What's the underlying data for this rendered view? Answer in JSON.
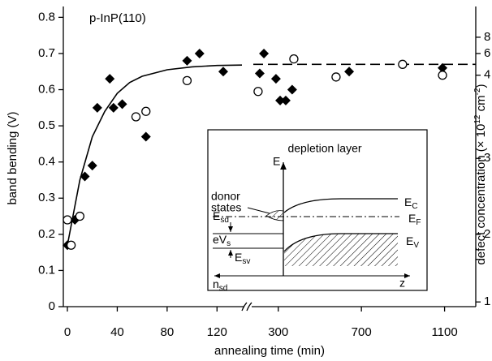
{
  "chart_data": {
    "type": "scatter",
    "annotation": "p-InP(110)",
    "xlabel": "annealing time (min)",
    "ylabel": "band bending (V)",
    "y2label": [
      "defect concentration (× 10",
      "12",
      " cm",
      "-2",
      ")"
    ],
    "xlim": [
      0,
      1250
    ],
    "xbreak": [
      140,
      180
    ],
    "xticks": [
      0,
      40,
      80,
      120,
      300,
      700,
      1100
    ],
    "ylim": [
      0,
      0.83
    ],
    "yticks": [
      0,
      0.1,
      0.2,
      0.3,
      0.4,
      0.5,
      0.6,
      0.7,
      0.8
    ],
    "y2ticks": [
      1,
      2,
      3,
      4,
      6,
      8
    ],
    "y2ticks_at": [
      0.013,
      0.2,
      0.41,
      0.64,
      0.7,
      0.745
    ],
    "series": [
      {
        "marker": "diamond",
        "color": "#000000",
        "x": [
          0,
          6,
          14,
          20,
          24,
          34,
          37,
          44,
          63,
          96,
          106,
          125,
          211,
          231,
          289,
          309,
          336,
          367,
          641,
          1090
        ],
        "values": [
          0.17,
          0.24,
          0.36,
          0.39,
          0.55,
          0.63,
          0.55,
          0.56,
          0.47,
          0.68,
          0.7,
          0.65,
          0.645,
          0.7,
          0.63,
          0.57,
          0.57,
          0.6,
          0.65,
          0.66
        ]
      },
      {
        "marker": "circle",
        "color": "#000000",
        "x": [
          0,
          3,
          10,
          55,
          63,
          96,
          203,
          375,
          578,
          898,
          1090
        ],
        "values": [
          0.24,
          0.17,
          0.25,
          0.525,
          0.54,
          0.625,
          0.595,
          0.685,
          0.635,
          0.67,
          0.64
        ]
      },
      {
        "marker": "line",
        "dash": false,
        "color": "#000000",
        "x": [
          0,
          10,
          20,
          30,
          40,
          50,
          60,
          80,
          100,
          120,
          140
        ],
        "values": [
          0.17,
          0.35,
          0.47,
          0.54,
          0.59,
          0.62,
          0.637,
          0.655,
          0.663,
          0.667,
          0.668
        ]
      },
      {
        "marker": "line",
        "dash": true,
        "color": "#000000",
        "x": [
          180,
          1250
        ],
        "values": [
          0.67,
          0.67
        ]
      }
    ]
  },
  "inset": {
    "title": "depletion layer",
    "e_axis": "E",
    "ec": [
      "E",
      "C"
    ],
    "ef": [
      "E",
      "F"
    ],
    "ev": [
      "E",
      "V"
    ],
    "esd": [
      "E",
      "sd"
    ],
    "esv": [
      "E",
      "sv"
    ],
    "evs": [
      "eV",
      "s"
    ],
    "nsd": [
      "n",
      "sd"
    ],
    "z": "z",
    "donor": [
      "donor",
      "states"
    ]
  }
}
